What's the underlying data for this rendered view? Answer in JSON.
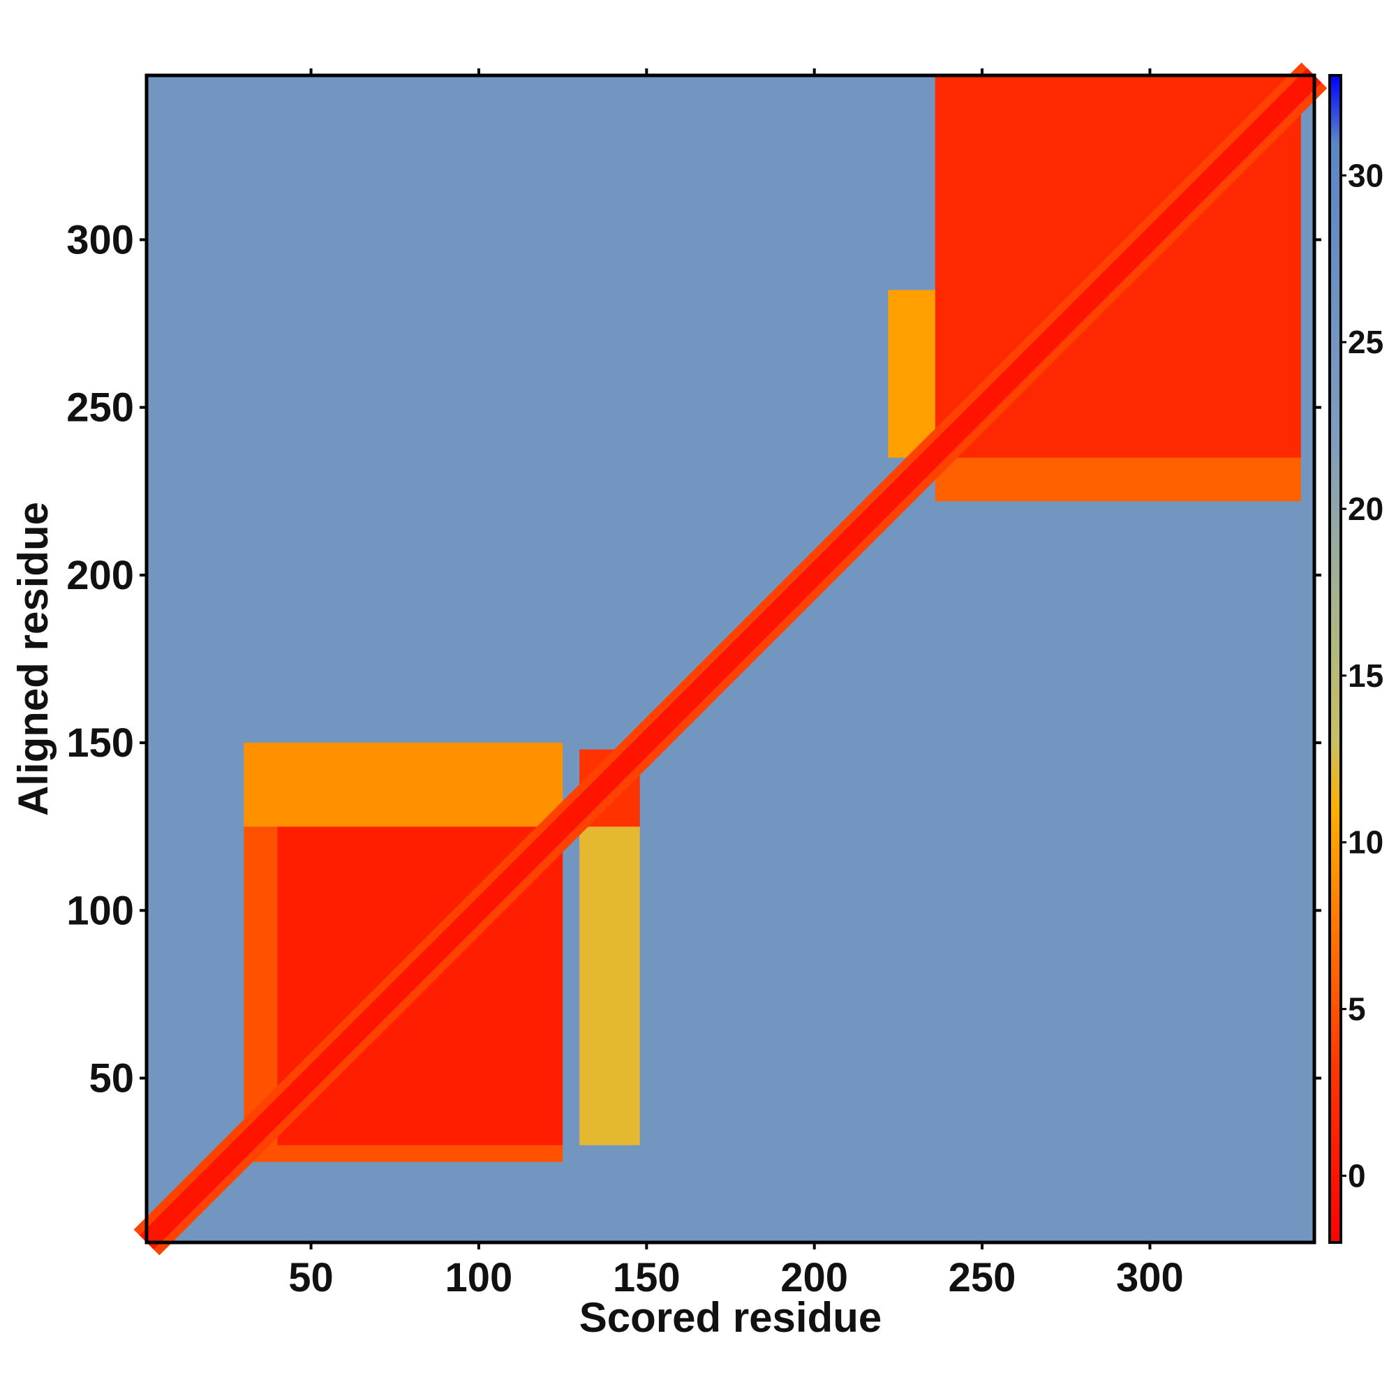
{
  "chart_data": {
    "type": "heatmap",
    "title": "",
    "xlabel": "Scored residue",
    "ylabel": "Aligned residue",
    "xlim": [
      1,
      349
    ],
    "ylim": [
      1,
      349
    ],
    "xticks": [
      50,
      100,
      150,
      200,
      250,
      300
    ],
    "yticks": [
      50,
      100,
      150,
      200,
      250,
      300
    ],
    "colorbar": {
      "range": [
        -2,
        33
      ],
      "ticks": [
        0,
        5,
        10,
        15,
        20,
        25,
        30
      ],
      "stops": [
        {
          "value": -2,
          "color": "#ff0000"
        },
        {
          "value": 3,
          "color": "#ff3300"
        },
        {
          "value": 8,
          "color": "#ff8000"
        },
        {
          "value": 11,
          "color": "#ffb000"
        },
        {
          "value": 13,
          "color": "#c8c060"
        },
        {
          "value": 17,
          "color": "#a8b48a"
        },
        {
          "value": 22,
          "color": "#7f9ebf"
        },
        {
          "value": 31,
          "color": "#5b86c6"
        },
        {
          "value": 33,
          "color": "#0000ff"
        }
      ]
    },
    "background_value": 25,
    "diagonal": {
      "from": 1,
      "to": 349,
      "value": 0,
      "band_width": 6
    },
    "blocks": [
      {
        "x": [
          30,
          125
        ],
        "y": [
          25,
          125
        ],
        "value": 5
      },
      {
        "x": [
          40,
          125
        ],
        "y": [
          30,
          125
        ],
        "value": 1
      },
      {
        "x": [
          30,
          125
        ],
        "y": [
          125,
          150
        ],
        "value": 9
      },
      {
        "x": [
          130,
          148
        ],
        "y": [
          30,
          125
        ],
        "value": 12
      },
      {
        "x": [
          130,
          148
        ],
        "y": [
          125,
          148
        ],
        "value": 3
      },
      {
        "x": [
          236,
          345
        ],
        "y": [
          222,
          349
        ],
        "value": 6
      },
      {
        "x": [
          236,
          345
        ],
        "y": [
          235,
          349
        ],
        "value": 2
      },
      {
        "x": [
          222,
          236
        ],
        "y": [
          235,
          285
        ],
        "value": 10
      }
    ]
  }
}
